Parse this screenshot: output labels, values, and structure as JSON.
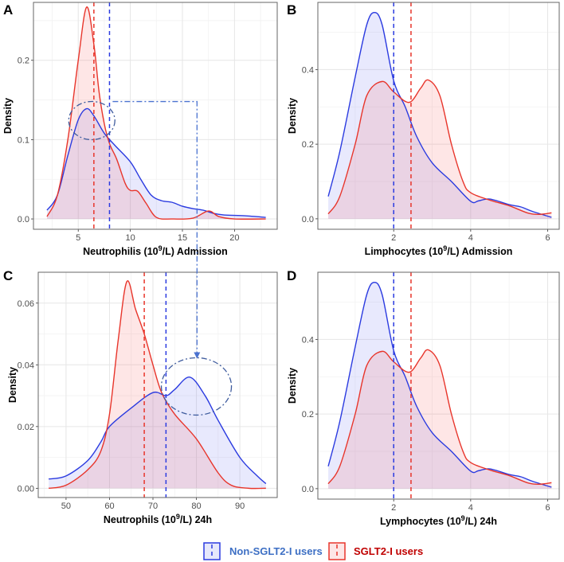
{
  "chart_data": [
    {
      "panel": "A",
      "type": "area",
      "xlabel": {
        "pre": "Neutrophilis (10",
        "sup": "9",
        "post": "/L) Admission"
      },
      "ylabel": "Density",
      "xlim": [
        0.7,
        24.1
      ],
      "ylim": [
        -0.013,
        0.273
      ],
      "xticks": [
        5,
        10,
        15,
        20
      ],
      "xticklabels": [
        "5",
        "10",
        "15",
        "20"
      ],
      "yticks": [
        0,
        0.1,
        0.2
      ],
      "yticklabels": [
        "0.0",
        "0.1",
        "0.2"
      ],
      "grid": true,
      "series": [
        {
          "group": "non_sglt2",
          "median": 8.0,
          "x": [
            2,
            3,
            4,
            5,
            5.8,
            6.5,
            7.5,
            8.5,
            10,
            11,
            12,
            13,
            14,
            15,
            16,
            17,
            18,
            19,
            21,
            23
          ],
          "y": [
            0.011,
            0.03,
            0.08,
            0.125,
            0.139,
            0.13,
            0.108,
            0.093,
            0.072,
            0.05,
            0.03,
            0.023,
            0.021,
            0.016,
            0.013,
            0.011,
            0.007,
            0.005,
            0.004,
            0.002
          ]
        },
        {
          "group": "sglt2",
          "median": 6.5,
          "x": [
            2,
            3,
            4,
            5,
            5.8,
            6.5,
            7,
            7.5,
            8,
            8.7,
            9.5,
            10,
            10.7,
            11.5,
            12.5,
            14,
            16,
            17.5,
            18.5,
            20,
            23
          ],
          "y": [
            0.003,
            0.03,
            0.1,
            0.2,
            0.267,
            0.22,
            0.16,
            0.12,
            0.095,
            0.075,
            0.045,
            0.036,
            0.035,
            0.02,
            0.002,
            0,
            0.001,
            0.01,
            0.003,
            0,
            0
          ]
        }
      ]
    },
    {
      "panel": "B",
      "type": "area",
      "xlabel": {
        "pre": "Limphocytes (10",
        "sup": "9",
        "post": "/L) Admission"
      },
      "ylabel": "Density",
      "xlim": [
        0.03,
        6.3
      ],
      "ylim": [
        -0.028,
        0.58
      ],
      "xticks": [
        2,
        4,
        6
      ],
      "xticklabels": [
        "2",
        "4",
        "6"
      ],
      "yticks": [
        0,
        0.2,
        0.4
      ],
      "yticklabels": [
        "0.0",
        "0.2",
        "0.4"
      ],
      "grid": true,
      "series": [
        {
          "group": "non_sglt2",
          "median": 2.0,
          "x": [
            0.3,
            0.6,
            1,
            1.3,
            1.5,
            1.7,
            2,
            2.3,
            2.6,
            3,
            3.5,
            4,
            4.2,
            4.5,
            5,
            5.3,
            5.6,
            6.1
          ],
          "y": [
            0.06,
            0.18,
            0.38,
            0.52,
            0.553,
            0.52,
            0.37,
            0.3,
            0.22,
            0.15,
            0.1,
            0.047,
            0.048,
            0.053,
            0.038,
            0.032,
            0.02,
            0.004
          ]
        },
        {
          "group": "sglt2",
          "median": 2.45,
          "x": [
            0.3,
            0.6,
            1,
            1.3,
            1.7,
            2,
            2.4,
            2.7,
            2.9,
            3.2,
            3.5,
            3.8,
            4,
            4.5,
            5,
            5.5,
            5.8,
            6.1
          ],
          "y": [
            0.013,
            0.06,
            0.2,
            0.33,
            0.368,
            0.34,
            0.312,
            0.35,
            0.372,
            0.33,
            0.2,
            0.1,
            0.07,
            0.05,
            0.035,
            0.015,
            0.012,
            0.016
          ]
        }
      ]
    },
    {
      "panel": "C",
      "type": "area",
      "xlabel": {
        "pre": "Neutrophils (10",
        "sup": "9",
        "post": "/L) 24h"
      },
      "ylabel": "Density",
      "xlim": [
        43.6,
        98.6
      ],
      "ylim": [
        -0.003,
        0.07
      ],
      "xticks": [
        50,
        60,
        70,
        80,
        90
      ],
      "xticklabels": [
        "50",
        "60",
        "70",
        "80",
        "90"
      ],
      "yticks": [
        0,
        0.02,
        0.04,
        0.06
      ],
      "yticklabels": [
        "0.00",
        "0.02",
        "0.04",
        "0.06"
      ],
      "grid": true,
      "series": [
        {
          "group": "non_sglt2",
          "median": 73,
          "x": [
            46,
            50,
            55,
            58,
            60,
            65,
            70,
            73,
            75,
            78.5,
            82,
            85,
            90,
            94,
            96
          ],
          "y": [
            0.003,
            0.004,
            0.009,
            0.015,
            0.02,
            0.026,
            0.031,
            0.03,
            0.032,
            0.036,
            0.03,
            0.022,
            0.01,
            0.004,
            0.0015
          ]
        },
        {
          "group": "sglt2",
          "median": 68,
          "x": [
            46,
            50,
            55,
            58,
            60,
            62,
            64,
            66,
            68,
            70,
            72,
            75,
            80,
            85,
            88,
            92,
            96
          ],
          "y": [
            0,
            0.001,
            0.006,
            0.012,
            0.024,
            0.048,
            0.067,
            0.058,
            0.05,
            0.04,
            0.031,
            0.024,
            0.016,
            0.005,
            0.001,
            0,
            0
          ]
        }
      ]
    },
    {
      "panel": "D",
      "type": "area",
      "xlabel": {
        "pre": "Lymphocytes (10",
        "sup": "9",
        "post": "/L) 24h"
      },
      "ylabel": "Density",
      "xlim": [
        0.03,
        6.3
      ],
      "ylim": [
        -0.028,
        0.58
      ],
      "xticks": [
        2,
        4,
        6
      ],
      "xticklabels": [
        "2",
        "4",
        "6"
      ],
      "yticks": [
        0,
        0.2,
        0.4
      ],
      "yticklabels": [
        "0.0",
        "0.2",
        "0.4"
      ],
      "grid": true,
      "series": [
        {
          "group": "non_sglt2",
          "median": 2.0,
          "x": [
            0.3,
            0.6,
            1,
            1.3,
            1.5,
            1.7,
            2,
            2.3,
            2.6,
            3,
            3.5,
            4,
            4.2,
            4.5,
            5,
            5.3,
            5.6,
            6.1
          ],
          "y": [
            0.06,
            0.18,
            0.38,
            0.52,
            0.553,
            0.52,
            0.37,
            0.3,
            0.22,
            0.15,
            0.1,
            0.047,
            0.048,
            0.053,
            0.038,
            0.032,
            0.02,
            0.004
          ]
        },
        {
          "group": "sglt2",
          "median": 2.45,
          "x": [
            0.3,
            0.6,
            1,
            1.3,
            1.7,
            2,
            2.4,
            2.7,
            2.9,
            3.2,
            3.5,
            3.8,
            4,
            4.5,
            5,
            5.5,
            5.8,
            6.1
          ],
          "y": [
            0.013,
            0.06,
            0.2,
            0.33,
            0.368,
            0.34,
            0.312,
            0.35,
            0.372,
            0.33,
            0.2,
            0.1,
            0.07,
            0.05,
            0.035,
            0.015,
            0.012,
            0.016
          ]
        }
      ]
    }
  ],
  "legend": {
    "placement": "bottom",
    "items": [
      {
        "group": "non_sglt2",
        "label": "Non-SGLT2-I users",
        "line": "#2b3be0",
        "fill": "#e6e8fb",
        "text": "#3d6fc4"
      },
      {
        "group": "sglt2",
        "label": "SGLT2-I users",
        "line": "#e8352b",
        "fill": "#fde6e6",
        "text": "#c00000"
      }
    ]
  },
  "colors": {
    "non_sglt2": "#2b3be0",
    "sglt2": "#e8352b",
    "annotation": "#3f5c9e"
  }
}
